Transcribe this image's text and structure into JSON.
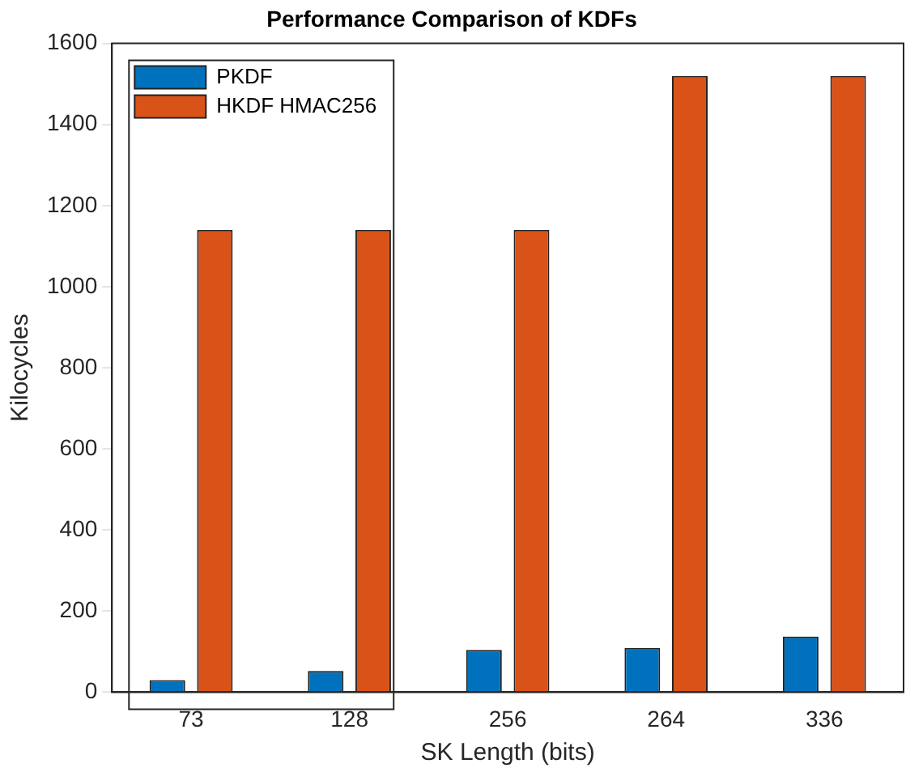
{
  "chart_data": {
    "type": "bar",
    "title": "Performance Comparison of KDFs",
    "xlabel": "SK Length (bits)",
    "ylabel": "Kilocycles",
    "categories": [
      "73",
      "128",
      "256",
      "264",
      "336"
    ],
    "series": [
      {
        "name": "PKDF",
        "color": "#0072bd",
        "values": [
          30,
          52,
          104,
          109,
          137
        ]
      },
      {
        "name": "HKDF HMAC256",
        "color": "#d95319",
        "values": [
          1140,
          1140,
          1140,
          1520,
          1520
        ]
      }
    ],
    "ylim": [
      0,
      1600
    ],
    "yticks": [
      0,
      200,
      400,
      600,
      800,
      1000,
      1200,
      1400,
      1600
    ],
    "grid": false,
    "legend": "top left"
  }
}
